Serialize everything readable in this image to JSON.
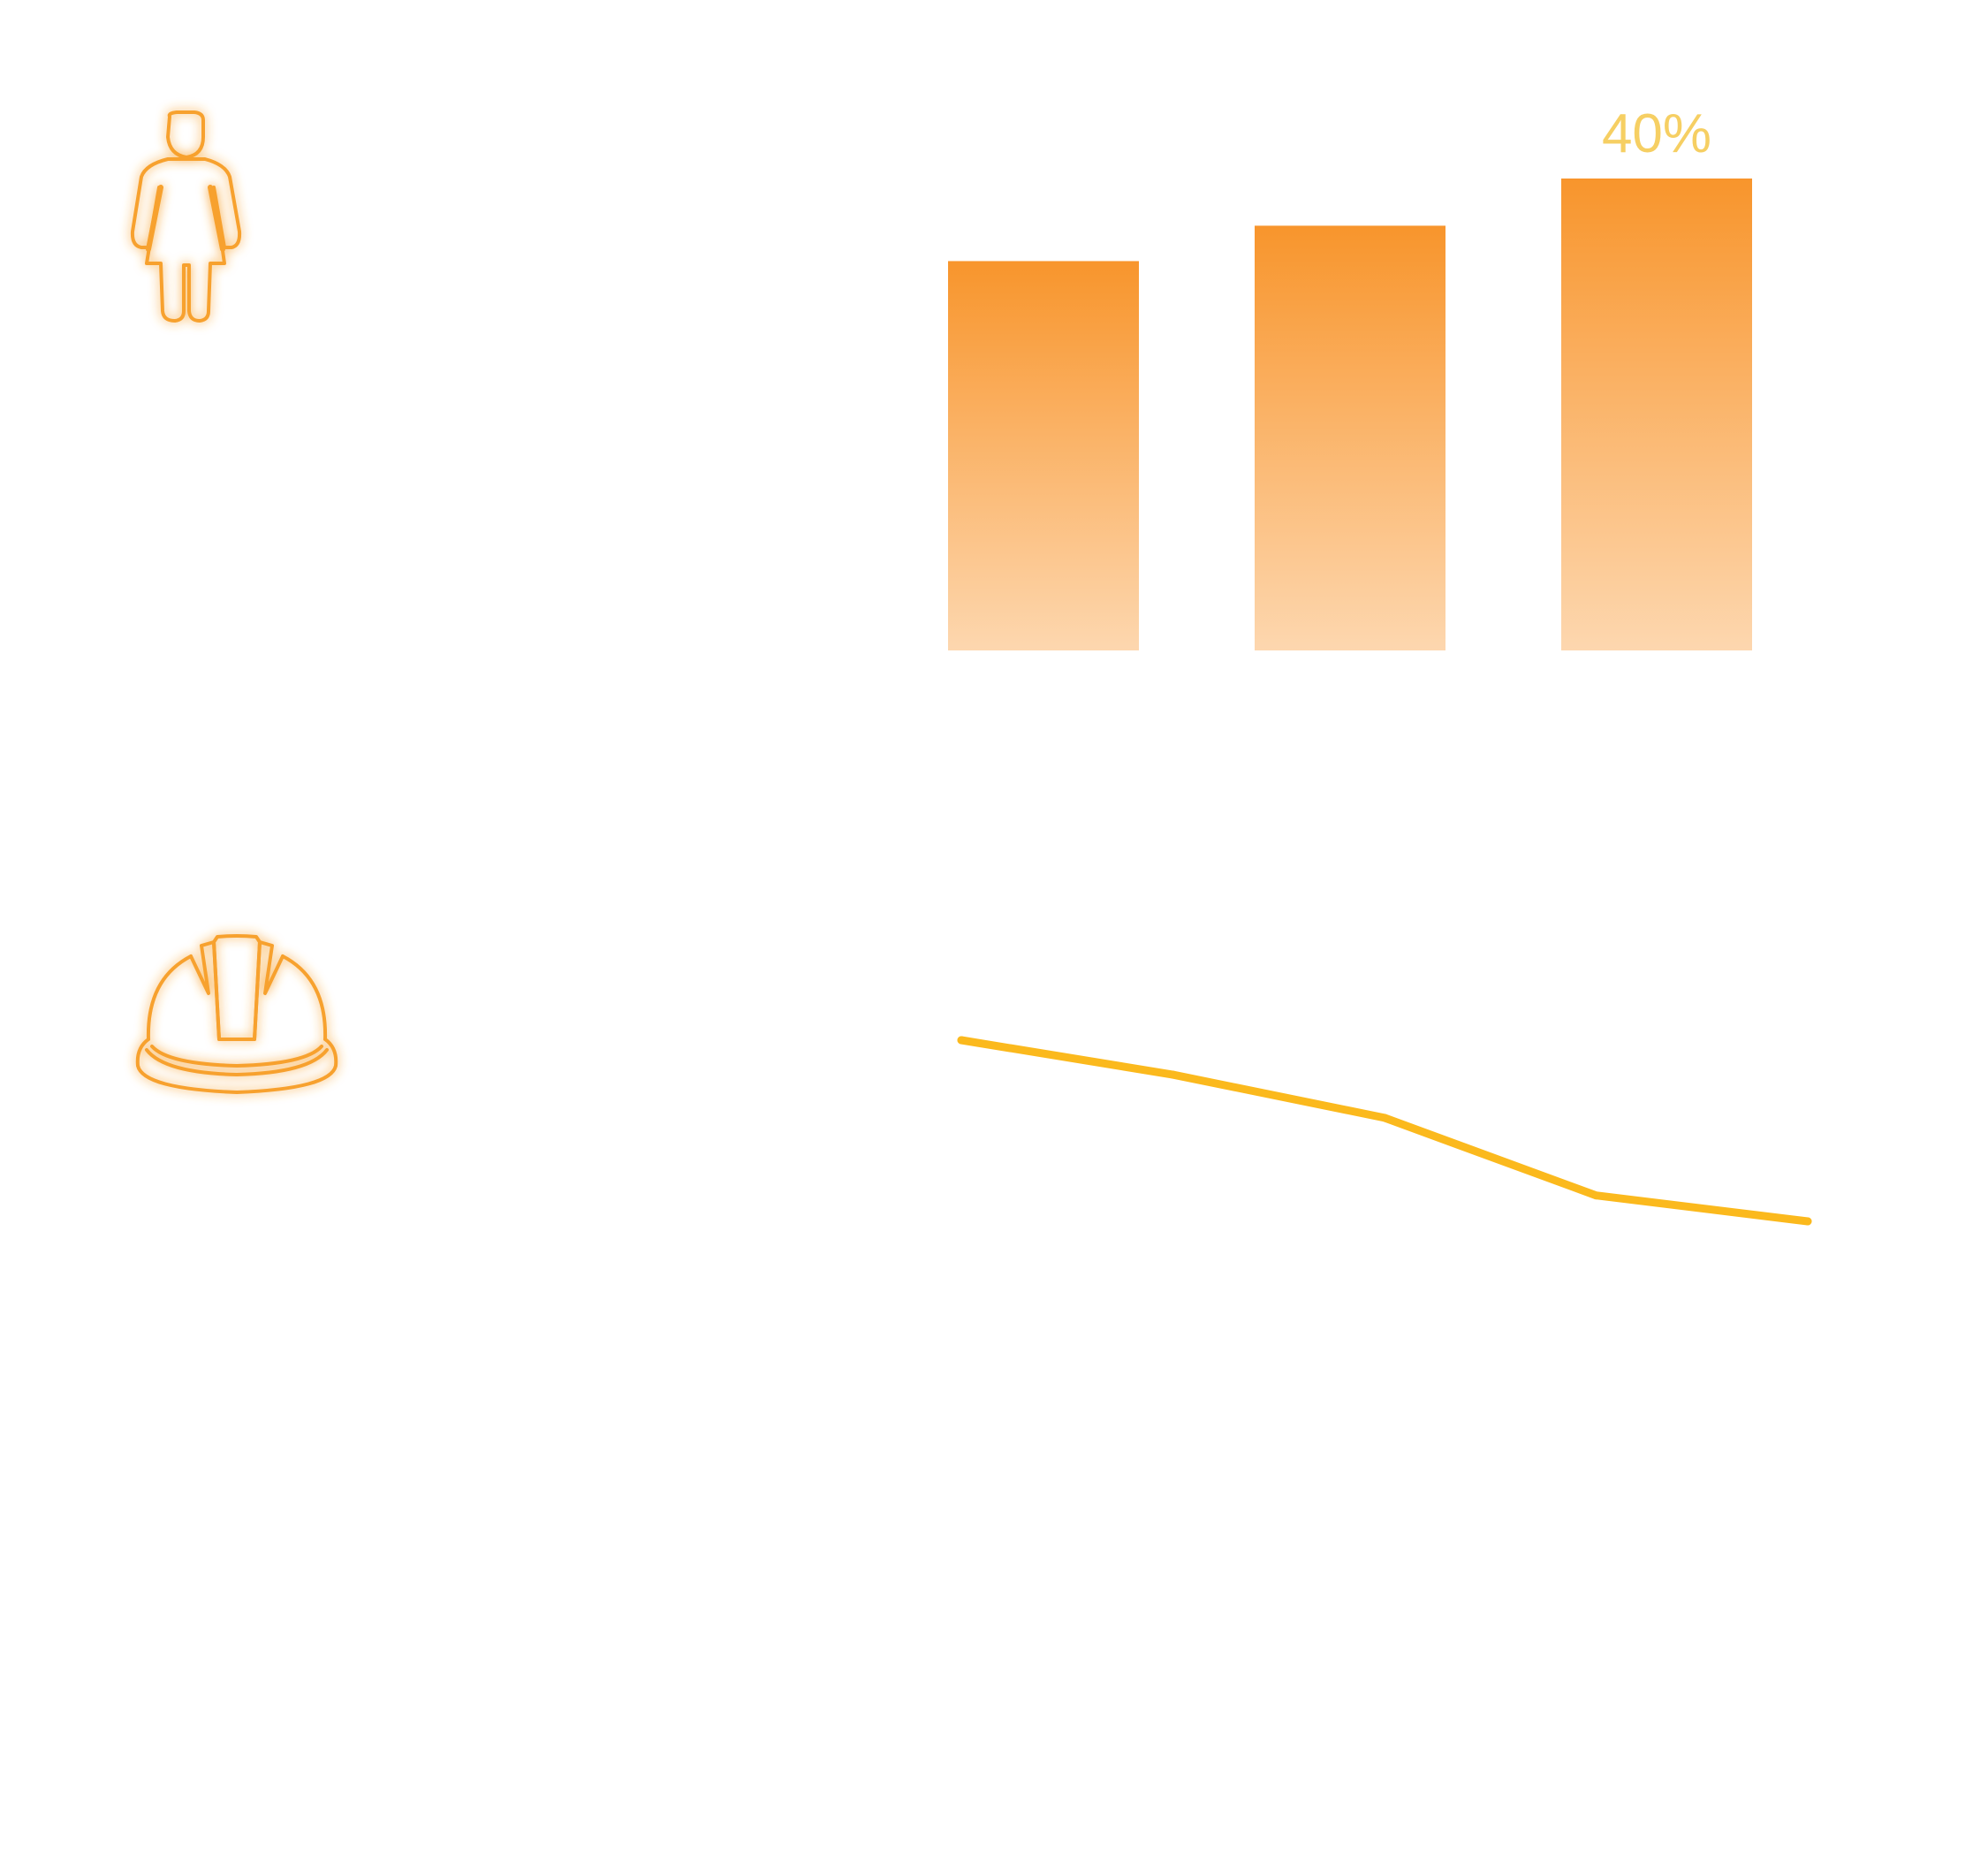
{
  "colors": {
    "bar_top": "#F8952C",
    "bar_bottom": "#FDD7AF",
    "line": "#FBB91D",
    "icon": "#F7A12F",
    "icon_glow": "#F9B04A",
    "label": "#F6CF63"
  },
  "icons": {
    "top": "woman-icon",
    "bottom": "hard-hat-icon"
  },
  "chart_data": [
    {
      "type": "bar",
      "categories": [
        "",
        "",
        ""
      ],
      "values": [
        33,
        36,
        40
      ],
      "data_labels": [
        "",
        "",
        "40%"
      ],
      "ylim": [
        0,
        40
      ],
      "grid": false,
      "legend": "none"
    },
    {
      "type": "line",
      "x": [
        1,
        2,
        3,
        4,
        5
      ],
      "values": [
        100,
        96,
        91,
        82,
        79
      ],
      "grid": false,
      "legend": "none"
    }
  ]
}
